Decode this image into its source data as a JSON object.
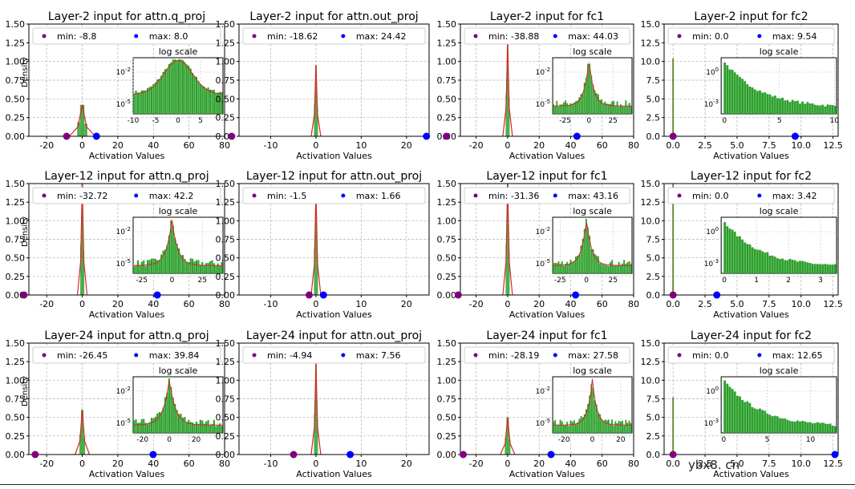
{
  "watermark": "ybx8. cn",
  "colors": {
    "hist": "#2ca02c",
    "kde": "#d62728",
    "min_dot": "#800080",
    "max_dot": "#0000ff"
  },
  "common": {
    "xlabel": "Activation Values",
    "ylabel": "Density",
    "inset_title": "log scale",
    "min_prefix": "min: ",
    "max_prefix": "max: "
  },
  "chart_data": [
    {
      "type": "histogram",
      "row": 0,
      "col": 0,
      "title": "Layer-2 input for attn.q_proj",
      "min": "-8.8",
      "max": "8.0",
      "min_val": -8.8,
      "max_val": 8.0,
      "xlim": [
        -30,
        80
      ],
      "xticks": [
        -20,
        0,
        20,
        40,
        60,
        80
      ],
      "ylim": [
        0,
        1.5
      ],
      "yticks": [
        0.0,
        0.25,
        0.5,
        0.75,
        1.0,
        1.25,
        1.5
      ],
      "peak": 0.42,
      "spread": 0.9,
      "inset": {
        "xlim": [
          -10,
          10
        ],
        "xticks": [
          -10,
          -5,
          0,
          5
        ],
        "yticks": [
          "10^-2",
          "10^-5"
        ],
        "shape": "gauss-wide"
      }
    },
    {
      "type": "histogram",
      "row": 0,
      "col": 1,
      "title": "Layer-2 input for attn.out_proj",
      "min": "-18.62",
      "max": "24.42",
      "min_val": -18.62,
      "max_val": 24.42,
      "xlim": [
        -17,
        25
      ],
      "xticks": [
        -10,
        0,
        10,
        20
      ],
      "ylim": [
        0,
        1.5
      ],
      "yticks": [
        0.0,
        0.25,
        0.5,
        0.75,
        1.0,
        1.25,
        1.5
      ],
      "peak": 0.95,
      "spread": 0.25,
      "inset": null
    },
    {
      "type": "histogram",
      "row": 0,
      "col": 2,
      "title": "Layer-2 input for fc1",
      "min": "-38.88",
      "max": "44.03",
      "min_val": -38.88,
      "max_val": 44.03,
      "xlim": [
        -30,
        80
      ],
      "xticks": [
        -20,
        0,
        20,
        40,
        60,
        80
      ],
      "ylim": [
        0,
        1.5
      ],
      "yticks": [
        0.0,
        0.25,
        0.5,
        0.75,
        1.0,
        1.25,
        1.5
      ],
      "peak": 1.25,
      "spread": 0.25,
      "inset": {
        "xlim": [
          -38,
          45
        ],
        "xticks": [
          -25,
          0,
          25
        ],
        "yticks": [
          "10^-2",
          "10^-5"
        ],
        "shape": "laplace"
      }
    },
    {
      "type": "histogram",
      "row": 0,
      "col": 3,
      "title": "Layer-2 input for fc2",
      "min": "0.0",
      "max": "9.54",
      "min_val": 0.0,
      "max_val": 9.54,
      "xlim": [
        -0.7,
        12.9
      ],
      "xticks": [
        0.0,
        2.5,
        5.0,
        7.5,
        10.0,
        12.5
      ],
      "ylim": [
        0,
        15
      ],
      "yticks": [
        0.0,
        2.5,
        5.0,
        7.5,
        10.0,
        12.5,
        15.0
      ],
      "peak": 10.4,
      "spread": 0.03,
      "inset": {
        "xlim": [
          -0.3,
          10.2
        ],
        "xticks": [
          0,
          5,
          10
        ],
        "yticks": [
          "10^0",
          "10^-3"
        ],
        "shape": "decay"
      }
    },
    {
      "type": "histogram",
      "row": 1,
      "col": 0,
      "title": "Layer-12 input for attn.q_proj",
      "min": "-32.72",
      "max": "42.2",
      "min_val": -32.72,
      "max_val": 42.2,
      "xlim": [
        -30,
        80
      ],
      "xticks": [
        -20,
        0,
        20,
        40,
        60,
        80
      ],
      "ylim": [
        0,
        1.5
      ],
      "yticks": [
        0.0,
        0.25,
        0.5,
        0.75,
        1.0,
        1.25,
        1.5
      ],
      "peak": 1.5,
      "spread": 0.2,
      "inset": {
        "xlim": [
          -32,
          42
        ],
        "xticks": [
          -25,
          0,
          25
        ],
        "yticks": [
          "10^-2",
          "10^-5"
        ],
        "shape": "laplace"
      }
    },
    {
      "type": "histogram",
      "row": 1,
      "col": 1,
      "title": "Layer-12 input for attn.out_proj",
      "min": "-1.5",
      "max": "1.66",
      "min_val": -1.5,
      "max_val": 1.66,
      "xlim": [
        -17,
        25
      ],
      "xticks": [
        -10,
        0,
        10,
        20
      ],
      "ylim": [
        0,
        1.5
      ],
      "yticks": [
        0.0,
        0.25,
        0.5,
        0.75,
        1.0,
        1.25,
        1.5
      ],
      "peak": 1.38,
      "spread": 0.18,
      "inset": null
    },
    {
      "type": "histogram",
      "row": 1,
      "col": 2,
      "title": "Layer-12 input for fc1",
      "min": "-31.36",
      "max": "43.16",
      "min_val": -31.36,
      "max_val": 43.16,
      "xlim": [
        -30,
        80
      ],
      "xticks": [
        -20,
        0,
        20,
        40,
        60,
        80
      ],
      "ylim": [
        0,
        1.5
      ],
      "yticks": [
        0.0,
        0.25,
        0.5,
        0.75,
        1.0,
        1.25,
        1.5
      ],
      "peak": 1.5,
      "spread": 0.2,
      "inset": {
        "xlim": [
          -32,
          43
        ],
        "xticks": [
          -25,
          0,
          25
        ],
        "yticks": [
          "10^-2",
          "10^-5"
        ],
        "shape": "laplace"
      }
    },
    {
      "type": "histogram",
      "row": 1,
      "col": 3,
      "title": "Layer-12 input for fc2",
      "min": "0.0",
      "max": "3.42",
      "min_val": 0.0,
      "max_val": 3.42,
      "xlim": [
        -0.7,
        12.9
      ],
      "xticks": [
        0.0,
        2.5,
        5.0,
        7.5,
        10.0,
        12.5
      ],
      "ylim": [
        0,
        15
      ],
      "yticks": [
        0.0,
        2.5,
        5.0,
        7.5,
        10.0,
        12.5,
        15.0
      ],
      "peak": 15.0,
      "spread": 0.03,
      "inset": {
        "xlim": [
          -0.1,
          3.5
        ],
        "xticks": [
          0,
          1,
          2,
          3
        ],
        "yticks": [
          "10^0",
          "10^-3"
        ],
        "shape": "decay"
      }
    },
    {
      "type": "histogram",
      "row": 2,
      "col": 0,
      "title": "Layer-24 input for attn.q_proj",
      "min": "-26.45",
      "max": "39.84",
      "min_val": -26.45,
      "max_val": 39.84,
      "xlim": [
        -30,
        80
      ],
      "xticks": [
        -20,
        0,
        20,
        40,
        60,
        80
      ],
      "ylim": [
        0,
        1.5
      ],
      "yticks": [
        0.0,
        0.25,
        0.5,
        0.75,
        1.0,
        1.25,
        1.5
      ],
      "peak": 0.6,
      "spread": 0.5,
      "inset": {
        "xlim": [
          -27,
          40
        ],
        "xticks": [
          -20,
          0,
          20
        ],
        "yticks": [
          "10^-2",
          "10^-5"
        ],
        "shape": "laplace"
      }
    },
    {
      "type": "histogram",
      "row": 2,
      "col": 1,
      "title": "Layer-24 input for attn.out_proj",
      "min": "-4.94",
      "max": "7.56",
      "min_val": -4.94,
      "max_val": 7.56,
      "xlim": [
        -17,
        25
      ],
      "xticks": [
        -10,
        0,
        10,
        20
      ],
      "ylim": [
        0,
        1.5
      ],
      "yticks": [
        0.0,
        0.25,
        0.5,
        0.75,
        1.0,
        1.25,
        1.5
      ],
      "peak": 1.22,
      "spread": 0.25,
      "inset": null
    },
    {
      "type": "histogram",
      "row": 2,
      "col": 2,
      "title": "Layer-24 input for fc1",
      "min": "-28.19",
      "max": "27.58",
      "min_val": -28.19,
      "max_val": 27.58,
      "xlim": [
        -30,
        80
      ],
      "xticks": [
        -20,
        0,
        20,
        40,
        60,
        80
      ],
      "ylim": [
        0,
        1.5
      ],
      "yticks": [
        0.0,
        0.25,
        0.5,
        0.75,
        1.0,
        1.25,
        1.5
      ],
      "peak": 0.5,
      "spread": 0.5,
      "inset": {
        "xlim": [
          -28,
          28
        ],
        "xticks": [
          -20,
          0,
          20
        ],
        "yticks": [
          "10^-2",
          "10^-5"
        ],
        "shape": "laplace"
      }
    },
    {
      "type": "histogram",
      "row": 2,
      "col": 3,
      "title": "Layer-24 input for fc2",
      "min": "0.0",
      "max": "12.65",
      "min_val": 0.0,
      "max_val": 12.65,
      "xlim": [
        -0.7,
        12.9
      ],
      "xticks": [
        0.0,
        2.5,
        5.0,
        7.5,
        10.0,
        12.5
      ],
      "ylim": [
        0,
        15
      ],
      "yticks": [
        0.0,
        2.5,
        5.0,
        7.5,
        10.0,
        12.5,
        15.0
      ],
      "peak": 7.7,
      "spread": 0.03,
      "inset": {
        "xlim": [
          -0.3,
          13
        ],
        "xticks": [
          0,
          5,
          10
        ],
        "yticks": [
          "10^0",
          "10^-3"
        ],
        "shape": "decay"
      }
    }
  ]
}
